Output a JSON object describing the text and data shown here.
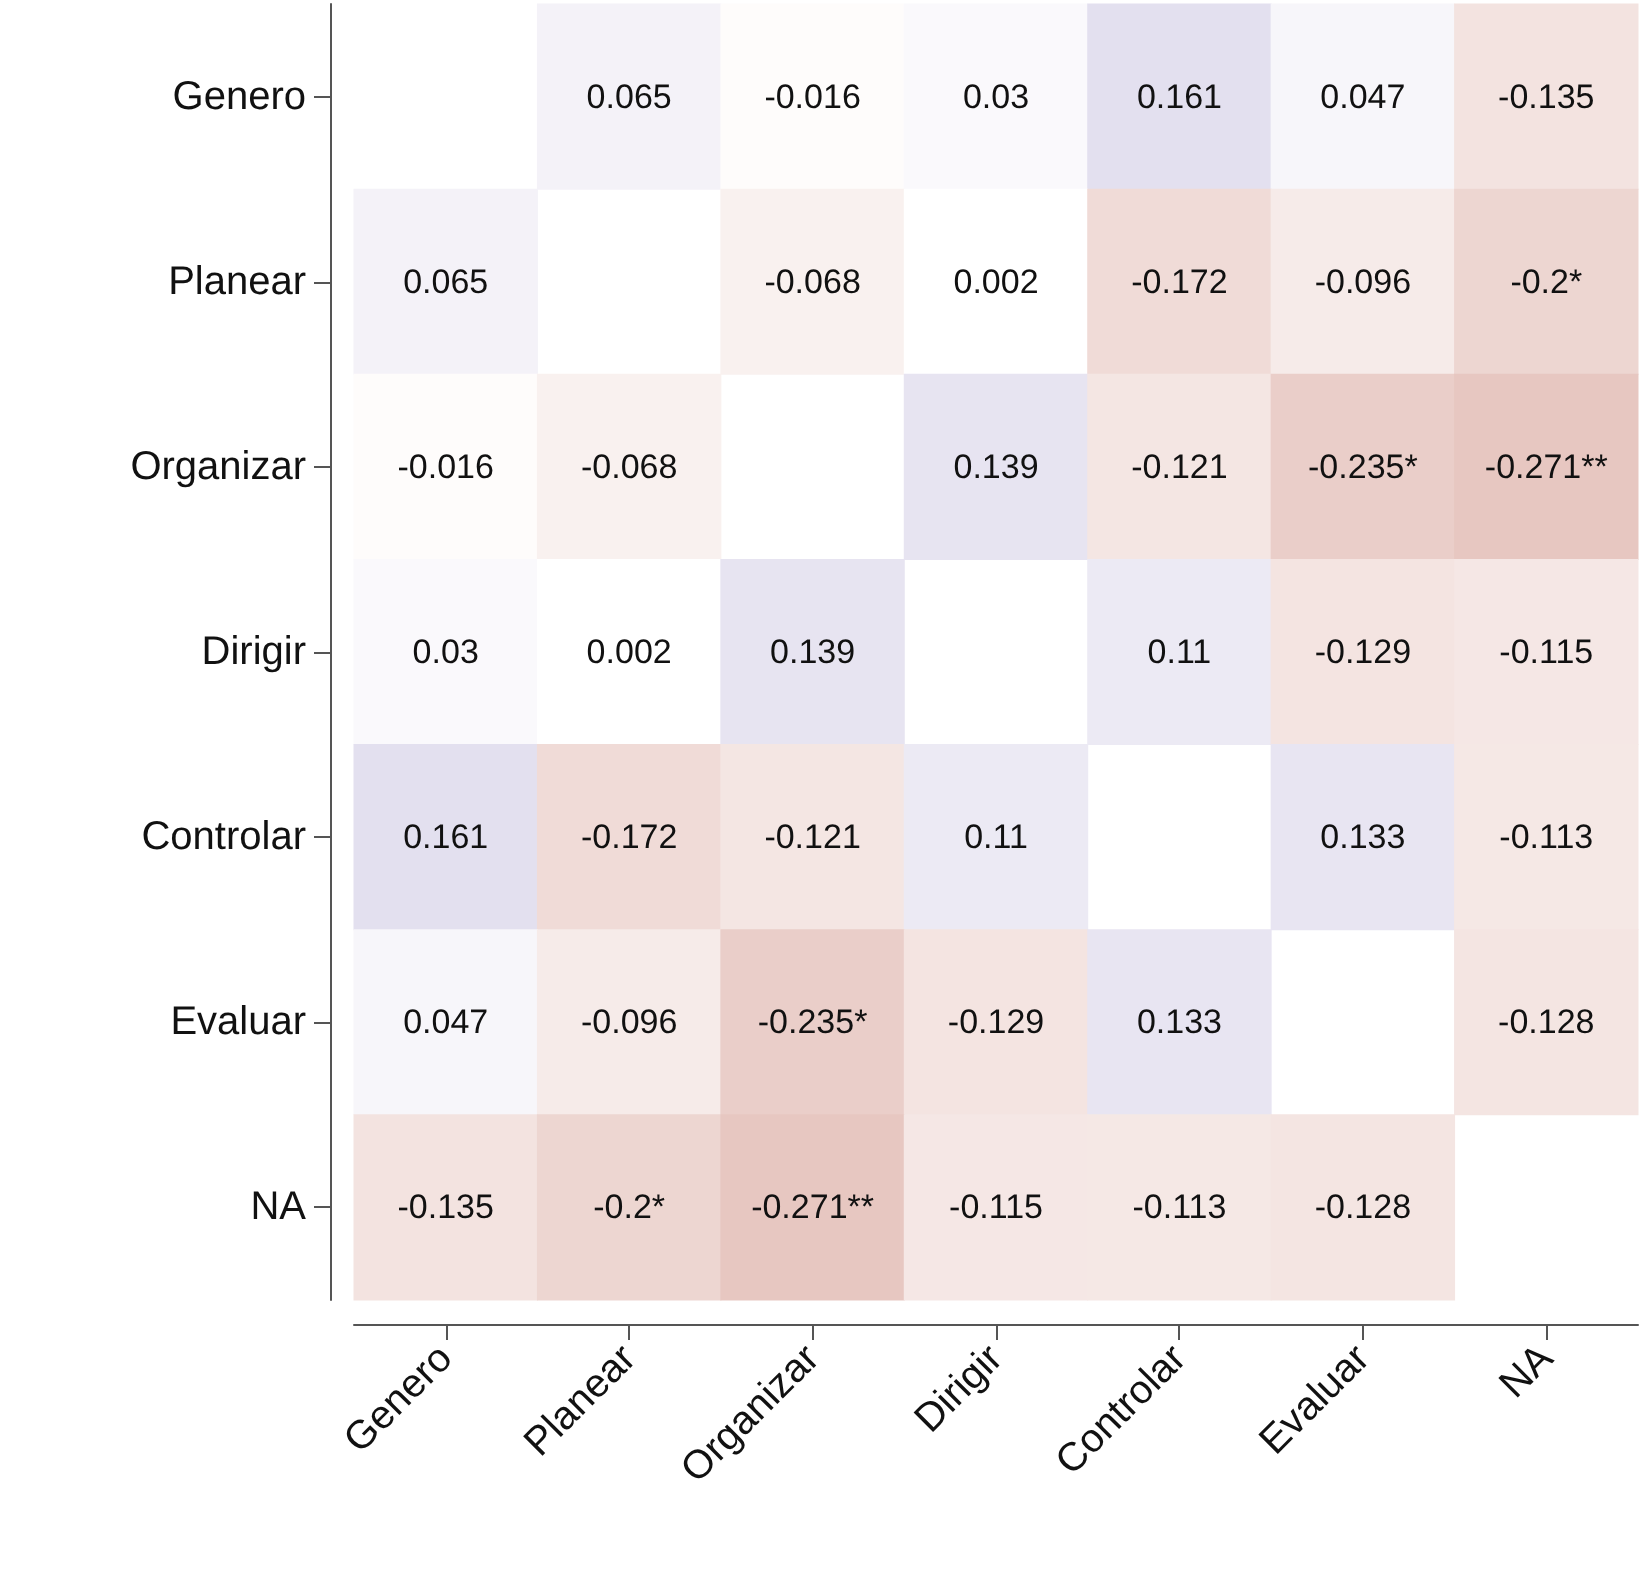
{
  "chart_data": {
    "type": "heatmap",
    "categories": [
      "Genero",
      "Planear",
      "Organizar",
      "Dirigir",
      "Controlar",
      "Evaluar",
      "NA"
    ],
    "y_categories": [
      "Genero",
      "Planear",
      "Organizar",
      "Dirigir",
      "Controlar",
      "Evaluar",
      "NA"
    ],
    "cells": [
      [
        null,
        0.065,
        -0.016,
        0.03,
        0.161,
        0.047,
        -0.135
      ],
      [
        0.065,
        null,
        -0.068,
        0.002,
        -0.172,
        -0.096,
        -0.2
      ],
      [
        -0.016,
        -0.068,
        null,
        0.139,
        -0.121,
        -0.235,
        -0.271
      ],
      [
        0.03,
        0.002,
        0.139,
        null,
        0.11,
        -0.129,
        -0.115
      ],
      [
        0.161,
        -0.172,
        -0.121,
        0.11,
        null,
        0.133,
        -0.113
      ],
      [
        0.047,
        -0.096,
        -0.235,
        -0.129,
        0.133,
        null,
        -0.128
      ],
      [
        -0.135,
        -0.2,
        -0.271,
        -0.115,
        -0.113,
        -0.128,
        null
      ]
    ],
    "cell_labels": [
      [
        null,
        "0.065",
        "-0.016",
        "0.03",
        "0.161",
        "0.047",
        "-0.135"
      ],
      [
        "0.065",
        null,
        "-0.068",
        "0.002",
        "-0.172",
        "-0.096",
        "-0.2*"
      ],
      [
        "-0.016",
        "-0.068",
        null,
        "0.139",
        "-0.121",
        "-0.235*",
        "-0.271**"
      ],
      [
        "0.03",
        "0.002",
        "0.139",
        null,
        "0.11",
        "-0.129",
        "-0.115"
      ],
      [
        "0.161",
        "-0.172",
        "-0.121",
        "0.11",
        null,
        "0.133",
        "-0.113"
      ],
      [
        "0.047",
        "-0.096",
        "-0.235*",
        "-0.129",
        "0.133",
        null,
        "-0.128"
      ],
      [
        "-0.135",
        "-0.2*",
        "-0.271**",
        "-0.115",
        "-0.113",
        "-0.128",
        null
      ]
    ]
  }
}
